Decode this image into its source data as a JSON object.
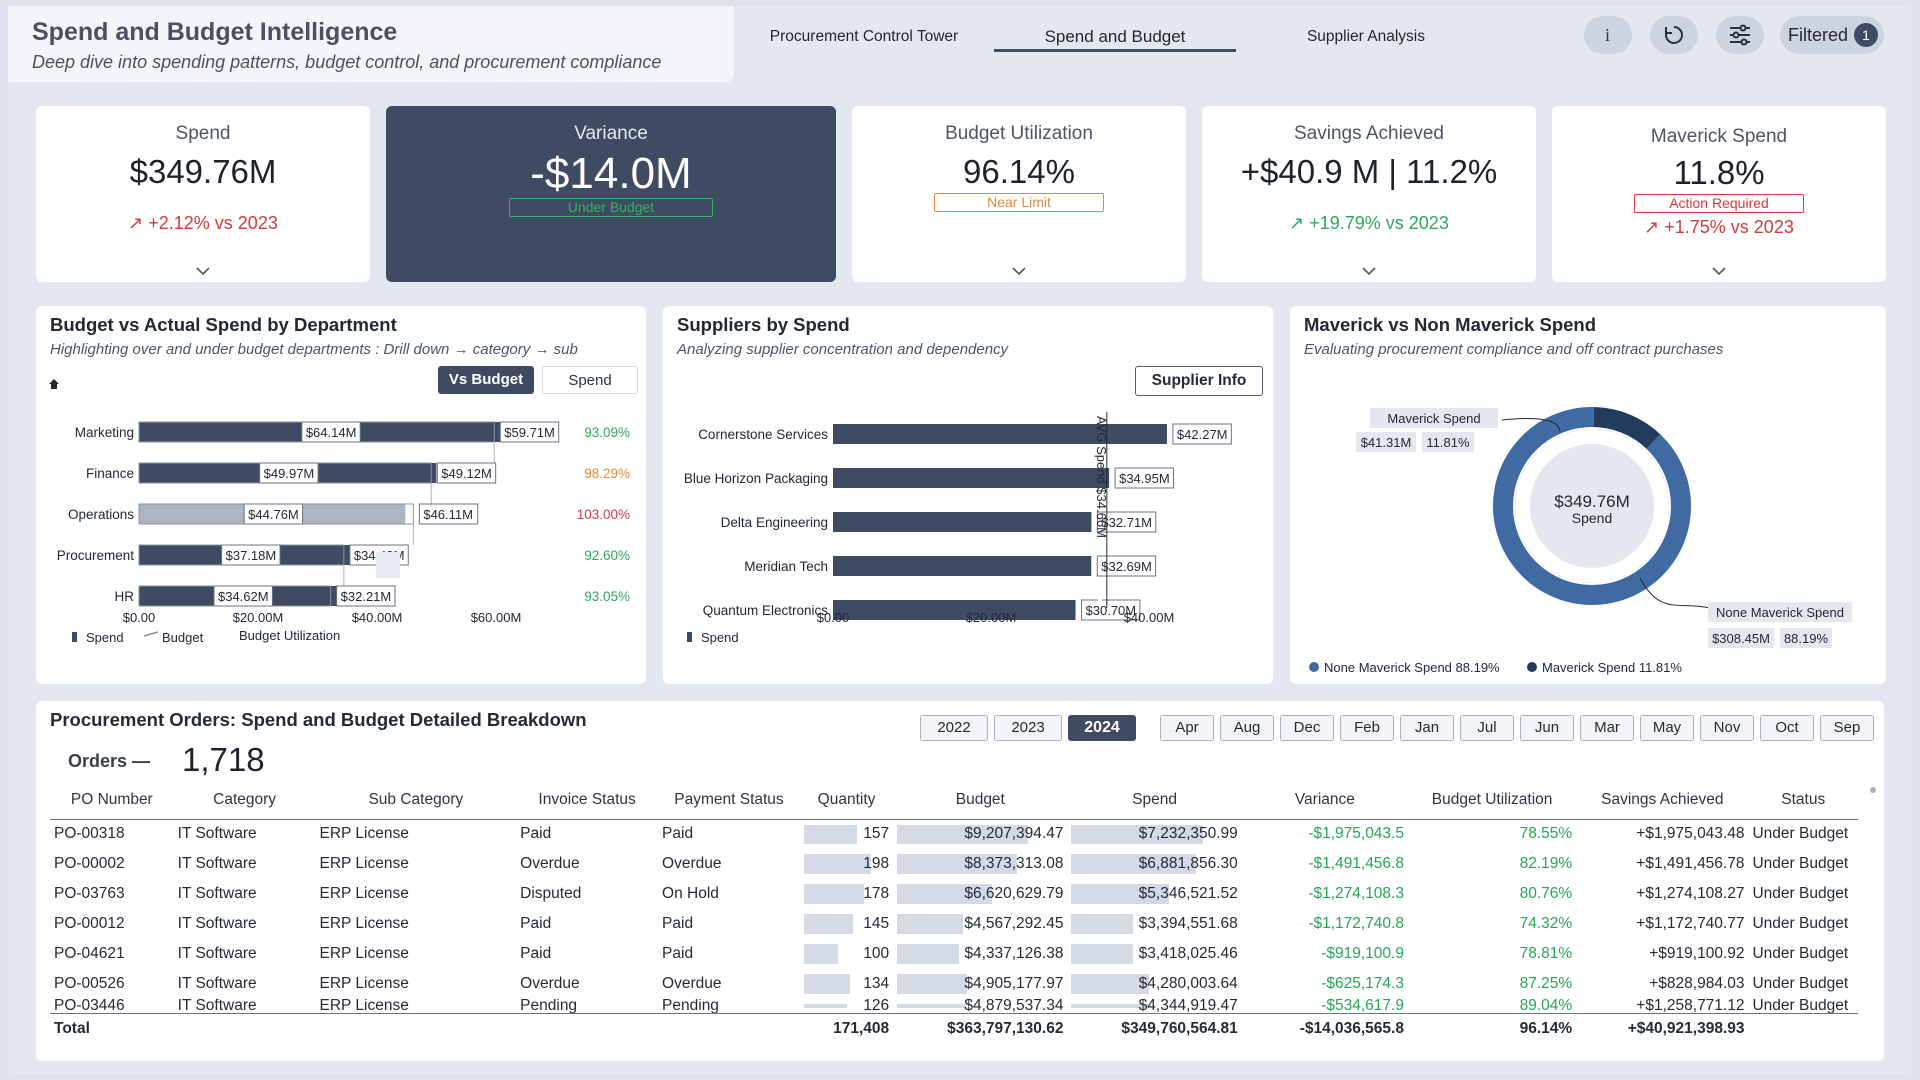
{
  "header": {
    "title": "Spend and Budget Intelligence",
    "subtitle": "Deep dive into spending patterns, budget control, and procurement compliance",
    "tabs": [
      "Procurement Control Tower",
      "Spend and Budget",
      "Supplier Analysis"
    ],
    "active_tab": "Spend and Budget",
    "filtered_label": "Filtered",
    "filtered_count": "1"
  },
  "kpis": {
    "spend": {
      "label": "Spend",
      "value": "$349.76M",
      "trend": "↗ +2.12% vs 2023"
    },
    "variance": {
      "label": "Variance",
      "value": "-$14.0M",
      "badge": "Under Budget"
    },
    "utilization": {
      "label": "Budget Utilization",
      "value": "96.14%",
      "badge": "Near Limit"
    },
    "savings": {
      "label": "Savings Achieved",
      "value_a": "+$40.9 M",
      "sep": "|",
      "value_b": "11.2%",
      "trend": "↗ +19.79% vs 2023"
    },
    "maverick": {
      "label": "Maverick Spend",
      "value": "11.8%",
      "badge": "Action Required",
      "trend": "↗ +1.75% vs 2023"
    }
  },
  "dept_panel": {
    "title": "Budget vs Actual Spend by Department",
    "subtitle": "Highlighting over and under budget departments : Drill down → category → sub",
    "toggle_active": "Vs Budget",
    "toggle_other": "Spend",
    "legend": [
      "Spend",
      "Budget",
      "Budget Utilization"
    ],
    "xticks": [
      "$0.00",
      "$20.00M",
      "$40.00M",
      "$60.00M"
    ]
  },
  "supplier_panel": {
    "title": "Suppliers by Spend",
    "subtitle": "Analyzing supplier concentration and dependency",
    "button": "Supplier Info",
    "avg_label": "AVG Spend $34.66M",
    "legend": [
      "Spend"
    ],
    "xticks": [
      "$0.00",
      "$20.00M",
      "$40.00M"
    ]
  },
  "maverick_panel": {
    "title": "Maverick vs Non Maverick Spend",
    "subtitle": "Evaluating procurement compliance and off contract purchases",
    "center_value": "$349.76M",
    "center_label": "Spend",
    "mav_label": "Maverick Spend",
    "mav_value": "$41.31M",
    "mav_pct": "11.81%",
    "non_label": "None Maverick Spend",
    "non_value": "$308.45M",
    "non_pct": "88.19%",
    "legend": [
      "None Maverick Spend 88.19%",
      "Maverick Spend 11.81%"
    ]
  },
  "chart_data": [
    {
      "type": "bar",
      "title": "Budget vs Actual Spend by Department",
      "categories": [
        "Marketing",
        "Finance",
        "Operations",
        "Procurement",
        "HR"
      ],
      "series": [
        {
          "name": "Spend",
          "values": [
            64.14,
            49.97,
            44.76,
            37.18,
            34.62
          ]
        },
        {
          "name": "Budget",
          "values": [
            59.71,
            49.12,
            46.11,
            34.43,
            32.21
          ]
        },
        {
          "name": "Budget Utilization",
          "values": [
            93.09,
            98.29,
            103.0,
            92.6,
            93.05
          ]
        }
      ],
      "spend_labels": [
        "$64.14M",
        "$49.97M",
        "$44.76M",
        "$37.18M",
        "$34.62M"
      ],
      "budget_labels": [
        "$59.71M",
        "$49.12M",
        "$46.11M",
        "$34.43M",
        "$32.21M"
      ],
      "util_labels": [
        "93.09%",
        "98.29%",
        "103.00%",
        "92.60%",
        "93.05%"
      ],
      "util_colors": [
        "#2fa75a",
        "#e0883a",
        "#cf3b3b",
        "#2fa75a",
        "#2fa75a"
      ],
      "xlim": [
        0,
        70
      ]
    },
    {
      "type": "bar",
      "title": "Suppliers by Spend",
      "categories": [
        "Cornerstone Services",
        "Blue Horizon Packaging",
        "Delta Engineering",
        "Meridian Tech",
        "Quantum Electronics"
      ],
      "series": [
        {
          "name": "Spend",
          "values": [
            42.27,
            34.95,
            32.71,
            32.69,
            30.7
          ]
        }
      ],
      "labels": [
        "$42.27M",
        "$34.95M",
        "$32.71M",
        "$32.69M",
        "$30.70M"
      ],
      "avg": 34.66,
      "xlim": [
        0,
        50
      ]
    },
    {
      "type": "pie",
      "title": "Maverick vs Non Maverick Spend",
      "categories": [
        "None Maverick Spend",
        "Maverick Spend"
      ],
      "values": [
        88.19,
        11.81
      ]
    }
  ],
  "orders": {
    "title": "Procurement Orders: Spend and Budget Detailed Breakdown",
    "count_label": "Orders —",
    "count": "1,718",
    "years": [
      "2022",
      "2023",
      "2024"
    ],
    "active_year": "2024",
    "months": [
      "Apr",
      "Aug",
      "Dec",
      "Feb",
      "Jan",
      "Jul",
      "Jun",
      "Mar",
      "May",
      "Nov",
      "Oct",
      "Sep"
    ],
    "columns": [
      "PO Number",
      "Category",
      "Sub Category",
      "Invoice Status",
      "Payment Status",
      "Quantity",
      "Budget",
      "Spend",
      "Variance",
      "Budget Utilization",
      "Savings Achieved",
      "Status"
    ],
    "rows": [
      [
        "PO-00318",
        "IT Software",
        "ERP License",
        "Paid",
        "Paid",
        "157",
        "$9,207,394.47",
        "$7,232,350.99",
        "-$1,975,043.5",
        "78.55%",
        "+$1,975,043.48",
        "Under Budget"
      ],
      [
        "PO-00002",
        "IT Software",
        "ERP License",
        "Overdue",
        "Overdue",
        "198",
        "$8,373,313.08",
        "$6,881,856.30",
        "-$1,491,456.8",
        "82.19%",
        "+$1,491,456.78",
        "Under Budget"
      ],
      [
        "PO-03763",
        "IT Software",
        "ERP License",
        "Disputed",
        "On Hold",
        "178",
        "$6,620,629.79",
        "$5,346,521.52",
        "-$1,274,108.3",
        "80.76%",
        "+$1,274,108.27",
        "Under Budget"
      ],
      [
        "PO-00012",
        "IT Software",
        "ERP License",
        "Paid",
        "Paid",
        "145",
        "$4,567,292.45",
        "$3,394,551.68",
        "-$1,172,740.8",
        "74.32%",
        "+$1,172,740.77",
        "Under Budget"
      ],
      [
        "PO-04621",
        "IT Software",
        "ERP License",
        "Paid",
        "Paid",
        "100",
        "$4,337,126.38",
        "$3,418,025.46",
        "-$919,100.9",
        "78.81%",
        "+$919,100.92",
        "Under Budget"
      ],
      [
        "PO-00526",
        "IT Software",
        "ERP License",
        "Overdue",
        "Overdue",
        "134",
        "$4,905,177.97",
        "$4,280,003.64",
        "-$625,174.3",
        "87.25%",
        "+$828,984.03",
        "Under Budget"
      ],
      [
        "PO-03446",
        "IT Software",
        "ERP License",
        "Pending",
        "Pending",
        "126",
        "$4,879,537.34",
        "$4,344,919.47",
        "-$534,617.9",
        "89.04%",
        "+$1,258,771.12",
        "Under Budget"
      ]
    ],
    "qty_fill": [
      0.79,
      1.0,
      0.9,
      0.73,
      0.5,
      0.68,
      0.64
    ],
    "budget_fill": [
      1.0,
      0.91,
      0.72,
      0.5,
      0.47,
      0.53,
      0.53
    ],
    "spend_fill": [
      1.0,
      0.95,
      0.74,
      0.47,
      0.47,
      0.59,
      0.6
    ],
    "total": [
      "Total",
      "",
      "",
      "",
      "",
      "171,408",
      "$363,797,130.62",
      "$349,760,564.81",
      "-$14,036,565.8",
      "96.14%",
      "+$40,921,398.93",
      ""
    ]
  }
}
